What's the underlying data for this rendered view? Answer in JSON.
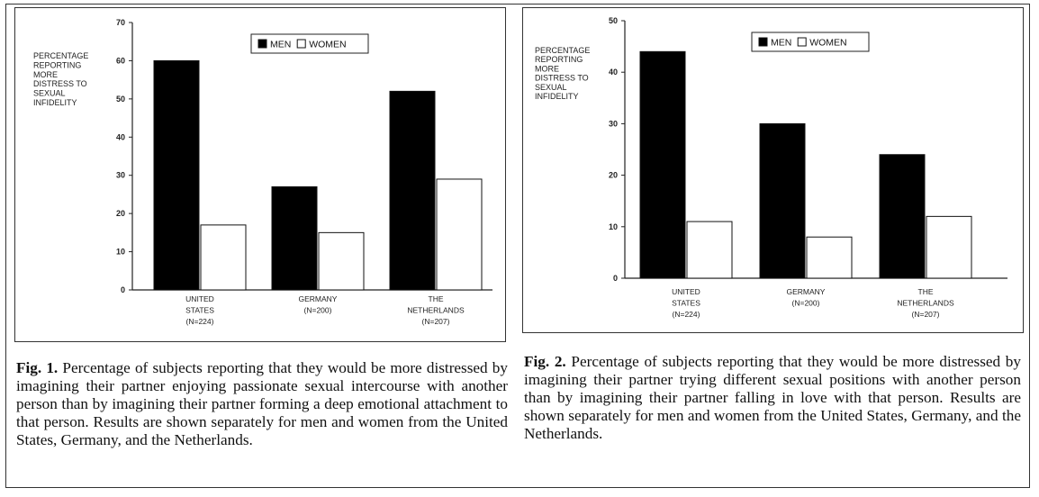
{
  "chart_data": [
    {
      "type": "bar",
      "ylabel_lines": [
        "PERCENTAGE",
        "REPORTING",
        "MORE",
        "DISTRESS TO",
        "SEXUAL",
        "INFIDELITY"
      ],
      "categories": [
        [
          "UNITED",
          "STATES",
          "(N=224)"
        ],
        [
          "GERMANY",
          "(N=200)"
        ],
        [
          "THE",
          "NETHERLANDS",
          "(N=207)"
        ]
      ],
      "series": [
        {
          "name": "MEN",
          "values": [
            60,
            27,
            52
          ],
          "color": "#000000"
        },
        {
          "name": "WOMEN",
          "values": [
            17,
            15,
            29
          ],
          "color": "#ffffff"
        }
      ],
      "yticks": [
        "0",
        "10",
        "20",
        "30",
        "40",
        "50",
        "60",
        "70"
      ],
      "ylim": [
        0,
        70
      ],
      "legend": "top"
    },
    {
      "type": "bar",
      "ylabel_lines": [
        "PERCENTAGE",
        "REPORTING",
        "MORE",
        "DISTRESS TO",
        "SEXUAL",
        "INFIDELITY"
      ],
      "categories": [
        [
          "UNITED",
          "STATES",
          "(N=224)"
        ],
        [
          "GERMANY",
          "(N=200)"
        ],
        [
          "THE",
          "NETHERLANDS",
          "(N=207)"
        ]
      ],
      "series": [
        {
          "name": "MEN",
          "values": [
            44,
            30,
            24
          ],
          "color": "#000000"
        },
        {
          "name": "WOMEN",
          "values": [
            11,
            8,
            12
          ],
          "color": "#ffffff"
        }
      ],
      "yticks": [
        "0",
        "10",
        "20",
        "30",
        "40",
        "50"
      ],
      "ylim": [
        0,
        50
      ],
      "legend": "top"
    }
  ],
  "captions": [
    {
      "label": "Fig. 1.",
      "text": "Percentage of subjects reporting that they would be more distressed by imagining their partner enjoying passionate sexual intercourse with another person than by imagining their partner forming a deep emotional attachment to that person. Results are shown separately for men and women from the United States, Germany, and the Netherlands."
    },
    {
      "label": "Fig. 2.",
      "text": "Percentage of subjects reporting that they would be more distressed by imagining their partner trying different sexual positions with another person than by imagining their partner falling in love with that person. Results are shown separately for men and women from the United States, Germany, and the Netherlands."
    }
  ]
}
